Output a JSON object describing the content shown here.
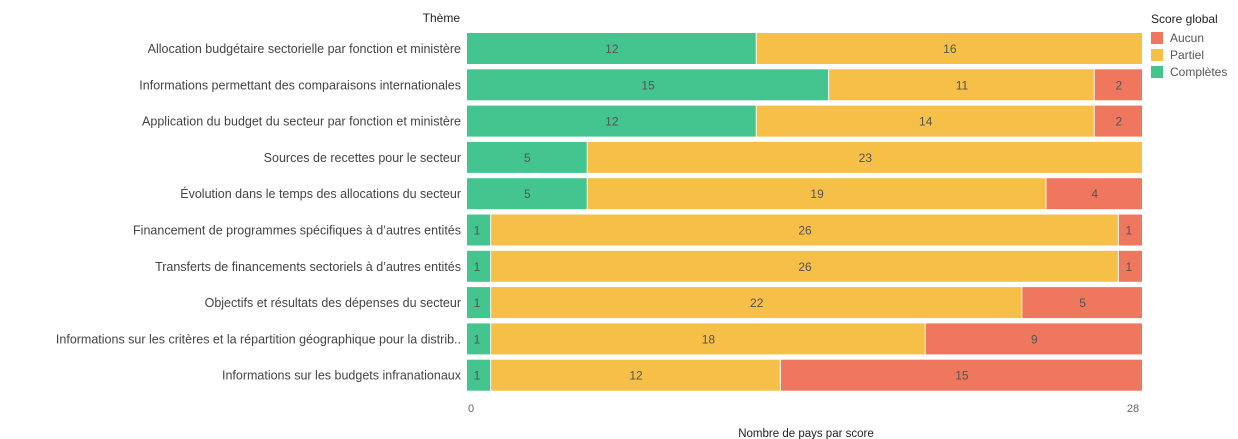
{
  "chart_data": {
    "type": "bar",
    "orientation": "horizontal",
    "stacked": true,
    "row_header": "Thème",
    "xlabel": "Nombre de pays par score",
    "xlim": [
      0,
      28
    ],
    "x_ticks": [
      "0",
      "28"
    ],
    "legend_title": "Score global",
    "legend_position": "top-right",
    "categories": [
      "Allocation budgétaire sectorielle par fonction et ministère",
      "Informations permettant des comparaisons internationales",
      "Application du budget du secteur par fonction et ministère",
      "Sources de recettes pour le secteur",
      "Évolution dans le temps des allocations du secteur",
      "Financement de programmes spécifiques à d’autres entités",
      "Transferts de financements sectoriels à d’autres entités",
      "Objectifs et résultats des dépenses du secteur",
      "Informations sur les critères et la répartition géographique pour la distrib..",
      "Informations sur les budgets infranationaux"
    ],
    "series": [
      {
        "name": "Complètes",
        "color": "#44C48E",
        "values": [
          12,
          15,
          12,
          5,
          5,
          1,
          1,
          1,
          1,
          1
        ]
      },
      {
        "name": "Partiel",
        "color": "#F5BF48",
        "values": [
          16,
          11,
          14,
          23,
          19,
          26,
          26,
          22,
          18,
          12
        ]
      },
      {
        "name": "Aucun",
        "color": "#EE775E",
        "values": [
          0,
          2,
          2,
          0,
          4,
          1,
          1,
          5,
          9,
          15
        ]
      }
    ],
    "legend_order": [
      "Aucun",
      "Partiel",
      "Complètes"
    ]
  }
}
